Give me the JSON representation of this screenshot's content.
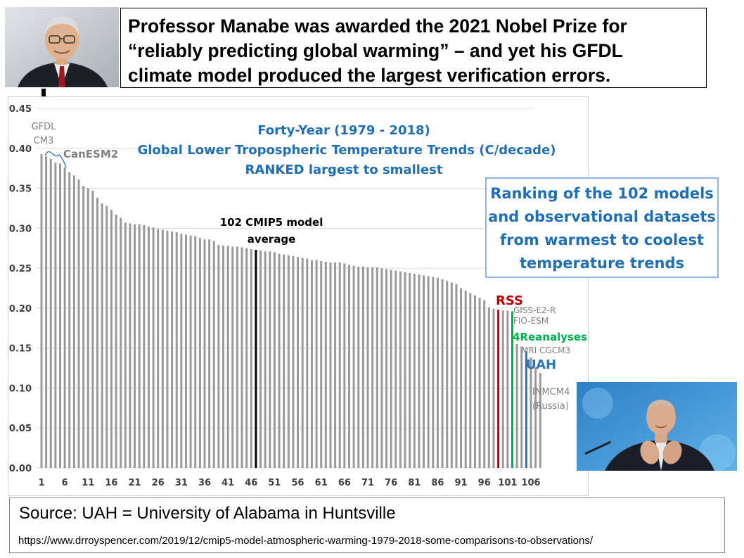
{
  "headline": {
    "lines": [
      "Professor Manabe was awarded the 2021 Nobel Prize for",
      "“reliably predicting global warming” – and yet his GFDL",
      "climate model produced the largest verification errors."
    ]
  },
  "ranking_box": {
    "lines": [
      "Ranking of the 102 models",
      "and observational datasets",
      "from warmest to coolest",
      "temperature trends"
    ]
  },
  "source": {
    "text": "Source: UAH = University of Alabama in Huntsville",
    "url": "https://www.drroyspencer.com/2019/12/cmip5-model-atmospheric-warming-1979-2018-some-comparisons-to-observations/"
  },
  "colors": {
    "bar": "#999999",
    "average": "#000000",
    "rss": "#c00000",
    "reanalyses": "#00b050",
    "uah": "#2e75b6",
    "title": "#1f6fb7",
    "label_gray": "#808080"
  },
  "chart_data": {
    "type": "bar",
    "title_lines": [
      "Forty-Year (1979 - 2018)",
      "Global Lower Tropospheric Temperature Trends (C/decade)",
      "RANKED largest to smallest"
    ],
    "xlabel": "",
    "ylabel": "",
    "ylim": [
      0,
      0.45
    ],
    "yticks": [
      "0.00",
      "0.05",
      "0.10",
      "0.15",
      "0.20",
      "0.25",
      "0.30",
      "0.35",
      "0.40",
      "0.45"
    ],
    "xticks": [
      "1",
      "6",
      "11",
      "16",
      "21",
      "26",
      "31",
      "36",
      "41",
      "46",
      "51",
      "56",
      "61",
      "66",
      "71",
      "76",
      "81",
      "86",
      "91",
      "96",
      "101",
      "106"
    ],
    "x_range": [
      1,
      106
    ],
    "values": [
      0.393,
      0.39,
      0.387,
      0.382,
      0.381,
      0.376,
      0.37,
      0.366,
      0.361,
      0.353,
      0.35,
      0.347,
      0.338,
      0.331,
      0.328,
      0.323,
      0.317,
      0.313,
      0.307,
      0.306,
      0.305,
      0.305,
      0.304,
      0.302,
      0.301,
      0.299,
      0.298,
      0.297,
      0.296,
      0.295,
      0.293,
      0.292,
      0.291,
      0.29,
      0.288,
      0.286,
      0.286,
      0.284,
      0.279,
      0.278,
      0.278,
      0.277,
      0.277,
      0.276,
      0.275,
      0.274,
      0.273,
      0.272,
      0.271,
      0.271,
      0.27,
      0.268,
      0.267,
      0.266,
      0.265,
      0.264,
      0.263,
      0.262,
      0.26,
      0.26,
      0.259,
      0.258,
      0.257,
      0.257,
      0.257,
      0.256,
      0.254,
      0.253,
      0.252,
      0.252,
      0.251,
      0.251,
      0.251,
      0.25,
      0.249,
      0.248,
      0.247,
      0.246,
      0.245,
      0.244,
      0.243,
      0.242,
      0.241,
      0.24,
      0.239,
      0.238,
      0.236,
      0.234,
      0.232,
      0.23,
      0.225,
      0.222,
      0.219,
      0.216,
      0.213,
      0.21,
      0.201,
      0.199,
      0.198,
      0.197,
      0.197,
      0.196,
      0.155,
      0.152,
      0.146,
      0.138,
      0.126,
      0.119
    ],
    "highlights": [
      {
        "name": "102 CMIP5 model average",
        "index": 47,
        "color": "#000000"
      },
      {
        "name": "RSS",
        "index": 99,
        "color": "#c00000"
      },
      {
        "name": "4Reanalyses",
        "index": 102,
        "color": "#00b050"
      },
      {
        "name": "UAH",
        "index": 105,
        "color": "#2e75b6"
      }
    ],
    "annotations": {
      "gfdl": [
        "GFDL",
        "CM3"
      ],
      "canesm": "CanESM2",
      "average": [
        "102 CMIP5 model",
        "average"
      ],
      "rss": "RSS",
      "giss": "GISS-E2-R",
      "fio": "FIO-ESM",
      "reanalyses": "4Reanalyses",
      "mri": "MRI CGCM3",
      "uah": "UAH",
      "inmcm": [
        "INMCM4",
        "(Russia)"
      ]
    }
  }
}
